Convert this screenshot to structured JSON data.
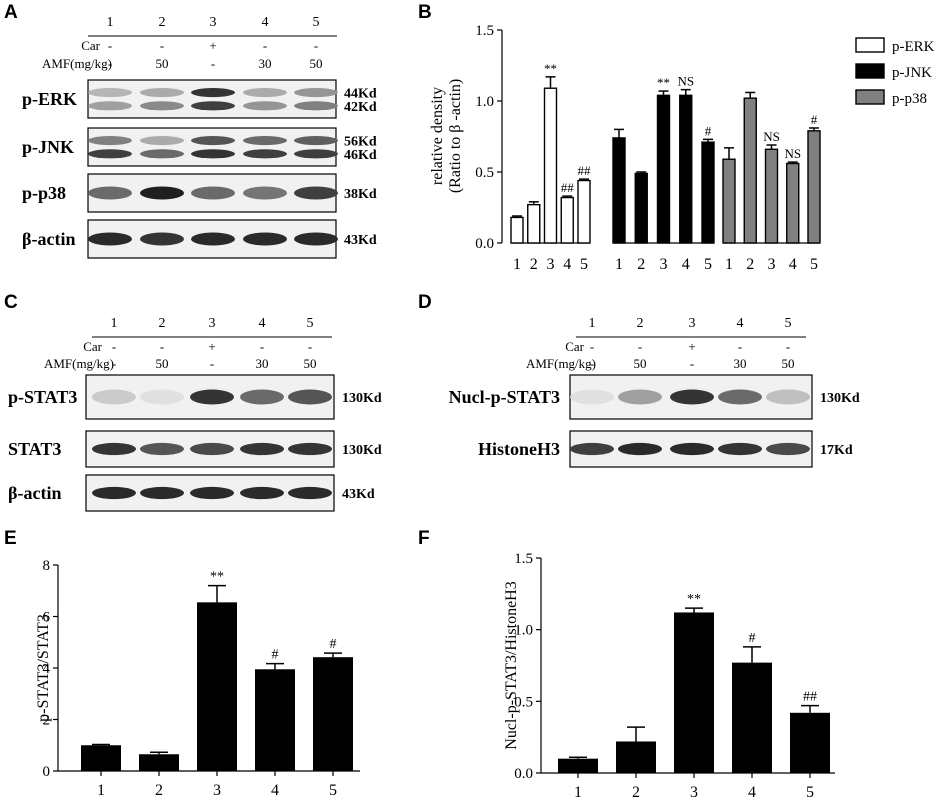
{
  "panels": {
    "A": {
      "letter": "A",
      "lanes": [
        "1",
        "2",
        "3",
        "4",
        "5"
      ],
      "car_label": "Car",
      "car": [
        "-",
        "-",
        "+",
        "-",
        "-"
      ],
      "amf_label": "AMF(mg/kg)",
      "amf": [
        "-",
        "50",
        "-",
        "30",
        "50"
      ],
      "blots": [
        {
          "label": "p-ERK",
          "kd": [
            "44Kd",
            "42Kd"
          ],
          "bands": [
            [
              0.25,
              0.35
            ],
            [
              0.3,
              0.45
            ],
            [
              0.85,
              0.8
            ],
            [
              0.3,
              0.4
            ],
            [
              0.4,
              0.5
            ]
          ]
        },
        {
          "label": "p-JNK",
          "kd": [
            "56Kd",
            "46Kd"
          ],
          "bands": [
            [
              0.5,
              0.8
            ],
            [
              0.3,
              0.6
            ],
            [
              0.7,
              0.85
            ],
            [
              0.6,
              0.8
            ],
            [
              0.65,
              0.8
            ]
          ]
        },
        {
          "label": "p-p38",
          "kd": [
            "38Kd"
          ],
          "bands": [
            [
              0.6
            ],
            [
              0.95
            ],
            [
              0.6
            ],
            [
              0.55
            ],
            [
              0.8
            ]
          ]
        },
        {
          "label": "β-actin",
          "kd": [
            "43Kd"
          ],
          "bands": [
            [
              0.9
            ],
            [
              0.85
            ],
            [
              0.9
            ],
            [
              0.9
            ],
            [
              0.9
            ]
          ]
        }
      ]
    },
    "C": {
      "letter": "C",
      "lanes": [
        "1",
        "2",
        "3",
        "4",
        "5"
      ],
      "car_label": "Car",
      "car": [
        "-",
        "-",
        "+",
        "-",
        "-"
      ],
      "amf_label": "AMF(mg/kg)",
      "amf": [
        "-",
        "50",
        "-",
        "30",
        "50"
      ],
      "blots": [
        {
          "label": "p-STAT3",
          "kd": [
            "130Kd"
          ],
          "bands": [
            [
              0.15
            ],
            [
              0.05
            ],
            [
              0.85
            ],
            [
              0.6
            ],
            [
              0.7
            ]
          ]
        },
        {
          "label": "STAT3",
          "kd": [
            "130Kd"
          ],
          "bands": [
            [
              0.85
            ],
            [
              0.7
            ],
            [
              0.75
            ],
            [
              0.85
            ],
            [
              0.85
            ]
          ]
        },
        {
          "label": "β-actin",
          "kd": [
            "43Kd"
          ],
          "bands": [
            [
              0.9
            ],
            [
              0.9
            ],
            [
              0.9
            ],
            [
              0.9
            ],
            [
              0.9
            ]
          ]
        }
      ]
    },
    "D": {
      "letter": "D",
      "lanes": [
        "1",
        "2",
        "3",
        "4",
        "5"
      ],
      "car_label": "Car",
      "car": [
        "-",
        "-",
        "+",
        "-",
        "-"
      ],
      "amf_label": "AMF(mg/kg)",
      "amf": [
        "-",
        "50",
        "-",
        "30",
        "50"
      ],
      "blots": [
        {
          "label": "Nucl-p-STAT3",
          "kd": [
            "130Kd"
          ],
          "bands": [
            [
              0.05
            ],
            [
              0.35
            ],
            [
              0.85
            ],
            [
              0.6
            ],
            [
              0.2
            ]
          ]
        },
        {
          "label": "HistoneH3",
          "kd": [
            "17Kd"
          ],
          "bands": [
            [
              0.8
            ],
            [
              0.9
            ],
            [
              0.9
            ],
            [
              0.85
            ],
            [
              0.75
            ]
          ]
        }
      ]
    },
    "B": {
      "letter": "B"
    },
    "E": {
      "letter": "E"
    },
    "F": {
      "letter": "F"
    }
  },
  "chart_data": [
    {
      "id": "B",
      "type": "bar",
      "ylabel_line1": "relative density",
      "ylabel_line2": "(Ratio to β -actin)",
      "ylim": [
        0,
        1.5
      ],
      "yticks": [
        "0.0",
        "0.5",
        "1.0",
        "1.5"
      ],
      "categories": [
        "1",
        "2",
        "3",
        "4",
        "5"
      ],
      "series": [
        {
          "name": "p-ERK",
          "fill": "#ffffff",
          "values": [
            0.18,
            0.27,
            1.09,
            0.32,
            0.44
          ],
          "errors": [
            0.01,
            0.02,
            0.08,
            0.01,
            0.01
          ],
          "annotations": [
            "",
            "",
            "**",
            "##",
            "##"
          ]
        },
        {
          "name": "p-JNK",
          "fill": "#000000",
          "values": [
            0.74,
            0.49,
            1.04,
            1.04,
            0.71
          ],
          "errors": [
            0.06,
            0.01,
            0.03,
            0.04,
            0.02
          ],
          "annotations": [
            "",
            "",
            "**",
            "NS",
            "#"
          ]
        },
        {
          "name": "p-p38",
          "fill": "#808080",
          "values": [
            0.59,
            1.02,
            0.66,
            0.56,
            0.79
          ],
          "errors": [
            0.08,
            0.04,
            0.03,
            0.01,
            0.02
          ],
          "annotations": [
            "",
            "",
            "NS",
            "NS",
            "#"
          ]
        }
      ],
      "grid": false,
      "legend": "top-right"
    },
    {
      "id": "E",
      "type": "bar",
      "ylabel": "p-STAT3/STAT3",
      "ylim": [
        0,
        8
      ],
      "yticks": [
        "0",
        "2",
        "4",
        "6",
        "8"
      ],
      "categories": [
        "1",
        "2",
        "3",
        "4",
        "5"
      ],
      "values": [
        1.0,
        0.65,
        6.55,
        3.95,
        4.42
      ],
      "errors": [
        0.03,
        0.08,
        0.65,
        0.22,
        0.16
      ],
      "annotations": [
        "",
        "",
        "**",
        "#",
        "#"
      ],
      "grid": false
    },
    {
      "id": "F",
      "type": "bar",
      "ylabel": "Nucl-p-STAT3/HistoneH3",
      "ylim": [
        0,
        1.5
      ],
      "yticks": [
        "0.0",
        "0.5",
        "1.0",
        "1.5"
      ],
      "categories": [
        "1",
        "2",
        "3",
        "4",
        "5"
      ],
      "values": [
        0.1,
        0.22,
        1.12,
        0.77,
        0.42
      ],
      "errors": [
        0.01,
        0.1,
        0.03,
        0.11,
        0.05
      ],
      "annotations": [
        "",
        "",
        "**",
        "#",
        "##"
      ],
      "grid": false
    }
  ]
}
